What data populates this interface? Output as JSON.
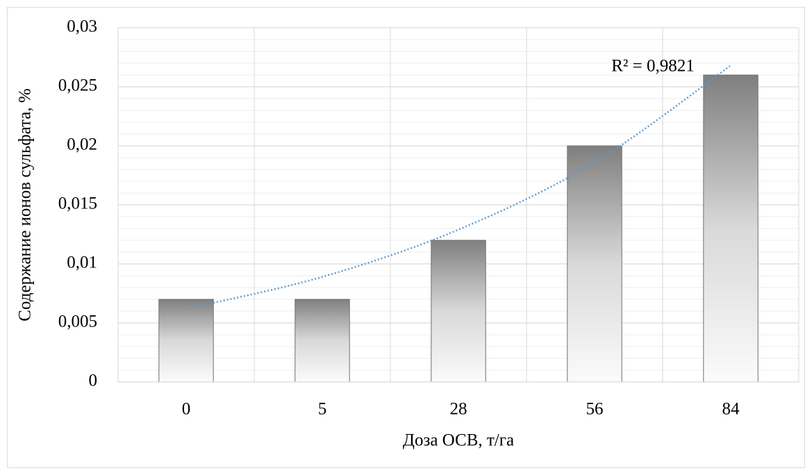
{
  "chart_data": {
    "type": "bar",
    "x_label": "Доза ОСВ, т/га",
    "y_label": "Содержание ионов сульфата, %",
    "categories": [
      "0",
      "5",
      "28",
      "56",
      "84"
    ],
    "values": [
      0.007,
      0.007,
      0.012,
      0.02,
      0.026
    ],
    "color": "#808080",
    "ylim": [
      0,
      0.03
    ],
    "yticks": [
      0,
      {
        "value": 0.005,
        "label": "0,005"
      },
      {
        "value": 0.01,
        "label": "0,01"
      },
      {
        "value": 0.015,
        "label": "0,015"
      },
      {
        "value": 0.02,
        "label": "0,02"
      },
      {
        "value": 0.025,
        "label": "0,025"
      },
      {
        "value": 0.03,
        "label": "0,03"
      }
    ],
    "grid": true,
    "minor_grid": true,
    "trendline": {
      "values": [
        0.0062,
        0.0089,
        0.0129,
        0.0186,
        0.0268
      ],
      "color": "#5b9bd5",
      "label": "R² = 0,9821"
    }
  }
}
